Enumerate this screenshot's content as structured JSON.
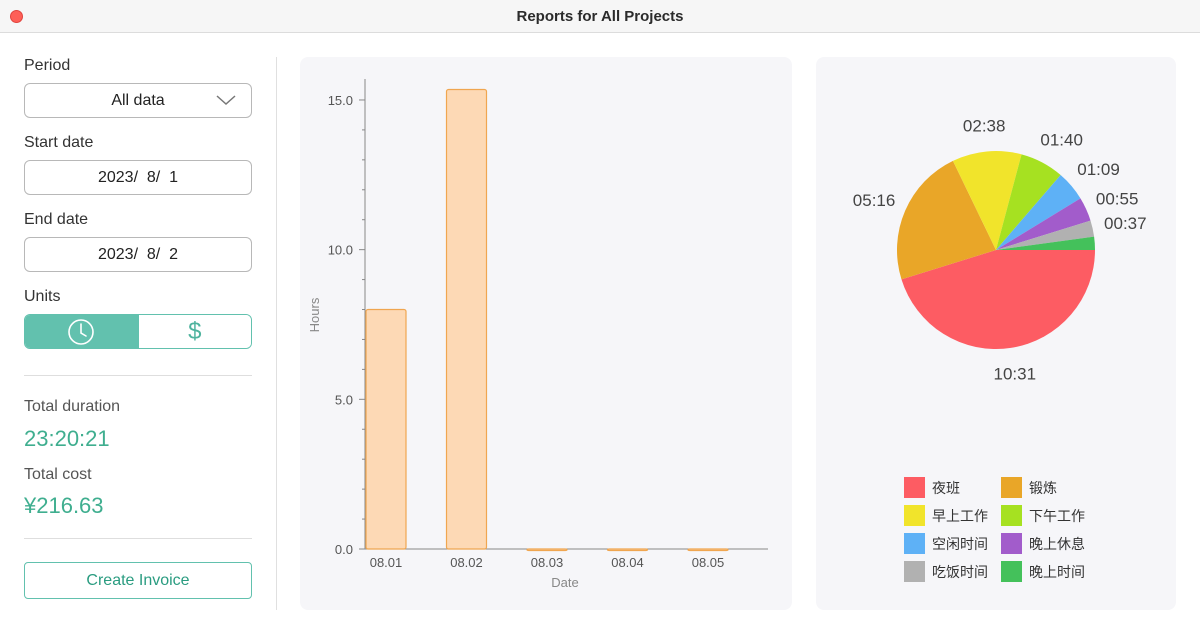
{
  "window": {
    "title": "Reports for All Projects"
  },
  "sidebar": {
    "period_label": "Period",
    "period_value": "All data",
    "start_label": "Start date",
    "start_value": "2023/  8/  1",
    "end_label": "End date",
    "end_value": "2023/  8/  2",
    "units_label": "Units",
    "units_options": [
      "clock-icon",
      "dollar-icon"
    ],
    "units_selected": "clock-icon",
    "dollar_glyph": "$",
    "total_duration_label": "Total duration",
    "total_duration_value": "23:20:21",
    "total_cost_label": "Total cost",
    "total_cost_value": "¥216.63",
    "invoice_button": "Create Invoice"
  },
  "colors": {
    "accent": "#62c1ae",
    "accent_text": "#3fae8f",
    "bar_fill": "#fdd9b5",
    "bar_stroke": "#f0a650"
  },
  "chart_data": [
    {
      "type": "bar",
      "categories": [
        "08.01",
        "08.02",
        "08.03",
        "08.04",
        "08.05"
      ],
      "values": [
        8.0,
        15.35,
        0,
        0,
        0
      ],
      "xlabel": "Date",
      "ylabel": "Hours",
      "ylim": [
        0,
        15.5
      ],
      "yticks": [
        "0.0",
        "5.0",
        "10.0",
        "15.0"
      ],
      "grid": false
    },
    {
      "type": "pie",
      "slices": [
        {
          "name": "夜班",
          "label": "10:31",
          "value": 631,
          "color": "#fd5c63"
        },
        {
          "name": "锻炼",
          "label": "05:16",
          "value": 316,
          "color": "#e9a628"
        },
        {
          "name": "早上工作",
          "label": "02:38",
          "value": 158,
          "color": "#f1e42b"
        },
        {
          "name": "下午工作",
          "label": "01:40",
          "value": 100,
          "color": "#a6e121"
        },
        {
          "name": "空闲时间",
          "label": "01:09",
          "value": 69,
          "color": "#5eb1f6"
        },
        {
          "name": "晚上休息",
          "label": "00:55",
          "value": 55,
          "color": "#a25ccb"
        },
        {
          "name": "吃饭时间",
          "label": "00:37",
          "value": 37,
          "color": "#b1b1b1"
        },
        {
          "name": "晚上时间",
          "label": "",
          "value": 30,
          "color": "#44c15b"
        }
      ],
      "legend_placement": "bottom"
    }
  ]
}
